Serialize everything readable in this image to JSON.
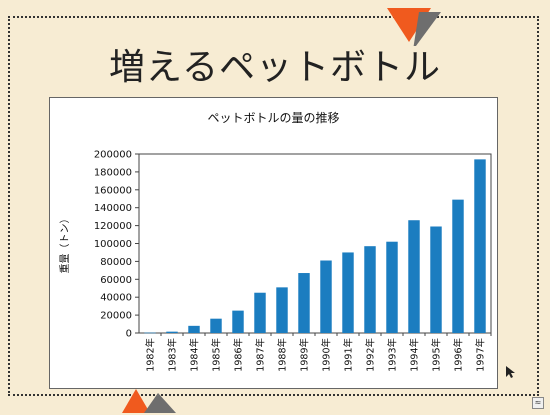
{
  "slide": {
    "title": "増えるペットボトル",
    "accent_colors": {
      "orange": "#f05a1e",
      "gray": "#6e6e6e",
      "bar": "#1b7dc0"
    },
    "decorations": [
      "orange-triangle",
      "gray-triangle"
    ],
    "corner_icon_glyph": "≈"
  },
  "chart_data": {
    "type": "bar",
    "title": "ペットボトルの量の推移",
    "xlabel": "",
    "ylabel": "重量（トン）",
    "categories": [
      "1982年",
      "1983年",
      "1984年",
      "1985年",
      "1986年",
      "1987年",
      "1988年",
      "1989年",
      "1990年",
      "1991年",
      "1992年",
      "1993年",
      "1994年",
      "1995年",
      "1996年",
      "1997年"
    ],
    "values": [
      400,
      1500,
      8000,
      16000,
      25000,
      45000,
      51000,
      67000,
      81000,
      90000,
      97000,
      102000,
      126000,
      119000,
      149000,
      194000
    ],
    "ylim": [
      0,
      200000
    ],
    "yticks": [
      "0",
      "20000",
      "40000",
      "60000",
      "80000",
      "100000",
      "120000",
      "140000",
      "160000",
      "180000",
      "200000"
    ],
    "grid": false,
    "legend": "none"
  }
}
